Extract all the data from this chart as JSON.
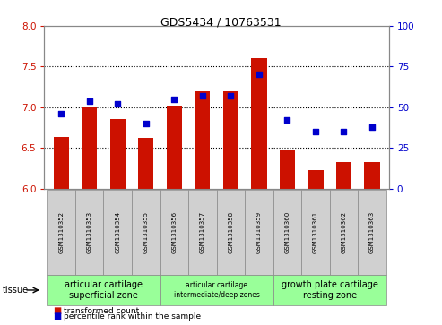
{
  "title": "GDS5434 / 10763531",
  "samples": [
    "GSM1310352",
    "GSM1310353",
    "GSM1310354",
    "GSM1310355",
    "GSM1310356",
    "GSM1310357",
    "GSM1310358",
    "GSM1310359",
    "GSM1310360",
    "GSM1310361",
    "GSM1310362",
    "GSM1310363"
  ],
  "transformed_count": [
    6.63,
    7.0,
    6.85,
    6.62,
    7.02,
    7.2,
    7.2,
    7.6,
    6.47,
    6.23,
    6.33,
    6.32
  ],
  "percentile_rank": [
    46,
    54,
    52,
    40,
    55,
    57,
    57,
    70,
    42,
    35,
    35,
    38
  ],
  "ylim_left": [
    6.0,
    8.0
  ],
  "ylim_right": [
    0,
    100
  ],
  "yticks_left": [
    6.0,
    6.5,
    7.0,
    7.5,
    8.0
  ],
  "yticks_right": [
    0,
    25,
    50,
    75,
    100
  ],
  "bar_color": "#cc1100",
  "dot_color": "#0000cc",
  "group_defs": [
    {
      "start": 0,
      "end": 4,
      "label": "articular cartilage\nsuperficial zone",
      "label_size": 7
    },
    {
      "start": 4,
      "end": 8,
      "label": "articular cartilage\nintermediate/deep zones",
      "label_size": 5.5
    },
    {
      "start": 8,
      "end": 12,
      "label": "growth plate cartilage\nresting zone",
      "label_size": 7
    }
  ],
  "group_color": "#99ff99",
  "cell_color": "#d0d0d0",
  "tissue_label": "tissue",
  "legend_items": [
    {
      "label": "transformed count",
      "color": "#cc1100"
    },
    {
      "label": "percentile rank within the sample",
      "color": "#0000cc"
    }
  ],
  "background_color": "#ffffff",
  "bar_bottom": 6.0,
  "left_axis_color": "#cc1100",
  "right_axis_color": "#0000cc",
  "xlim": [
    -0.6,
    11.6
  ]
}
